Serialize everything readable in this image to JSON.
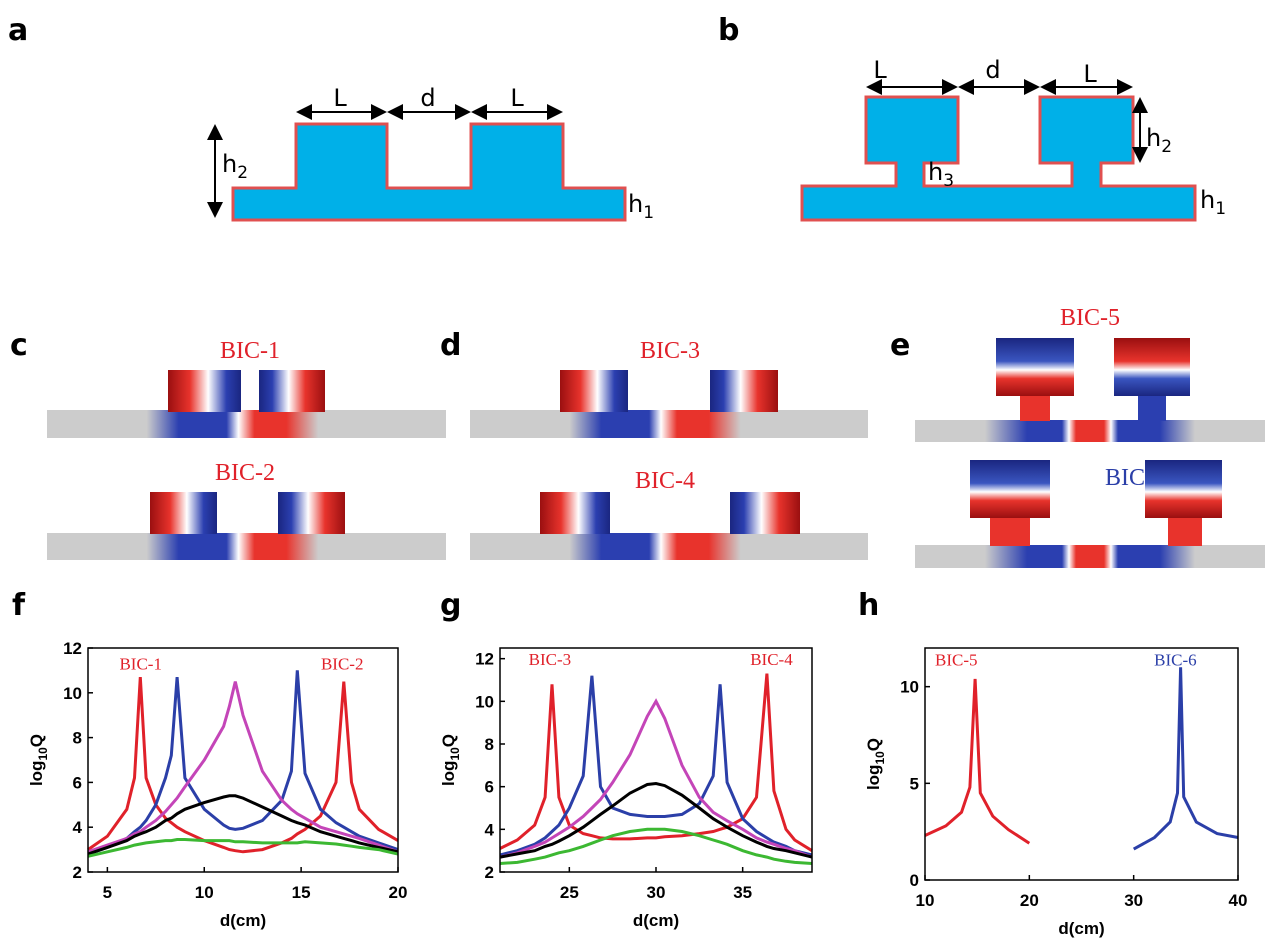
{
  "panels": {
    "a": {
      "label": "a",
      "L1": "L",
      "d": "d",
      "L2": "L",
      "h2": {
        "base": "h",
        "sub": "2"
      },
      "h1": {
        "base": "h",
        "sub": "1"
      }
    },
    "b": {
      "label": "b",
      "L1": "L",
      "d": "d",
      "L2": "L",
      "h2": {
        "base": "h",
        "sub": "2"
      },
      "h3": {
        "base": "h",
        "sub": "3"
      },
      "h1": {
        "base": "h",
        "sub": "1"
      }
    },
    "c": {
      "label": "c",
      "top": "BIC-1",
      "bottom": "BIC-2"
    },
    "d": {
      "label": "d",
      "top": "BIC-3",
      "bottom": "BIC-4"
    },
    "e": {
      "label": "e",
      "top": "BIC-5",
      "bottom": "BIC-6"
    }
  },
  "chart_data": [
    {
      "type": "line",
      "panel_label": "f",
      "x_label": "d(cm)",
      "y_label": {
        "text": "log",
        "sub": "10",
        "rest": "Q"
      },
      "xlim": [
        4,
        20
      ],
      "ylim": [
        2,
        12
      ],
      "xticks": [
        5,
        10,
        15,
        20
      ],
      "yticks": [
        2,
        4,
        6,
        8,
        10,
        12
      ],
      "annotations": [
        {
          "text": "BIC-1",
          "color": "#e0212a"
        },
        {
          "text": "BIC-2",
          "color": "#e0212a"
        }
      ],
      "x": [
        4,
        5,
        6,
        6.4,
        6.7,
        7,
        7.5,
        8,
        8.3,
        8.6,
        9,
        10,
        11,
        11.3,
        11.6,
        12,
        13,
        14,
        14.5,
        14.8,
        15.2,
        16,
        16.8,
        17.2,
        17.6,
        18,
        19,
        20
      ],
      "series": [
        {
          "color": "#e0212a",
          "values": [
            3.0,
            3.6,
            4.8,
            6.2,
            10.7,
            6.2,
            5.0,
            4.4,
            4.2,
            4.0,
            3.8,
            3.4,
            3.1,
            3.0,
            2.95,
            2.9,
            3.0,
            3.3,
            3.5,
            3.7,
            3.9,
            4.5,
            6.0,
            10.5,
            6.0,
            4.8,
            3.9,
            3.4
          ]
        },
        {
          "color": "#2b3fa8",
          "values": [
            2.8,
            3.1,
            3.5,
            3.8,
            4.0,
            4.3,
            5.0,
            6.2,
            7.2,
            10.7,
            6.2,
            4.8,
            4.1,
            3.95,
            3.9,
            3.95,
            4.3,
            5.2,
            6.5,
            11.0,
            6.4,
            4.8,
            4.2,
            4.0,
            3.8,
            3.6,
            3.3,
            3.0
          ]
        },
        {
          "color": "#c445b8",
          "values": [
            2.9,
            3.2,
            3.5,
            3.7,
            3.8,
            4.0,
            4.3,
            4.7,
            5.0,
            5.3,
            5.8,
            7.0,
            8.5,
            9.4,
            10.5,
            9.0,
            6.5,
            5.2,
            4.8,
            4.6,
            4.4,
            4.0,
            3.8,
            3.7,
            3.6,
            3.5,
            3.2,
            2.9
          ]
        },
        {
          "color": "#000000",
          "values": [
            2.8,
            3.1,
            3.4,
            3.6,
            3.7,
            3.8,
            4.0,
            4.3,
            4.4,
            4.6,
            4.8,
            5.1,
            5.35,
            5.4,
            5.4,
            5.3,
            4.9,
            4.5,
            4.3,
            4.2,
            4.1,
            3.8,
            3.6,
            3.5,
            3.4,
            3.3,
            3.1,
            2.9
          ]
        },
        {
          "color": "#3cb832",
          "values": [
            2.7,
            2.9,
            3.1,
            3.2,
            3.25,
            3.3,
            3.35,
            3.4,
            3.4,
            3.45,
            3.45,
            3.4,
            3.4,
            3.4,
            3.35,
            3.35,
            3.3,
            3.3,
            3.3,
            3.3,
            3.35,
            3.3,
            3.25,
            3.2,
            3.15,
            3.1,
            3.0,
            2.8
          ]
        }
      ]
    },
    {
      "type": "line",
      "panel_label": "g",
      "x_label": "d(cm)",
      "y_label": {
        "text": "log",
        "sub": "10",
        "rest": "Q"
      },
      "xlim": [
        21,
        39
      ],
      "ylim": [
        2,
        12.5
      ],
      "xticks": [
        25,
        30,
        35
      ],
      "yticks": [
        2,
        4,
        6,
        8,
        10,
        12
      ],
      "annotations": [
        {
          "text": "BIC-3",
          "color": "#e0212a"
        },
        {
          "text": "BIC-4",
          "color": "#e0212a"
        }
      ],
      "x": [
        21,
        22,
        23,
        23.6,
        24,
        24.4,
        25,
        25.8,
        26.3,
        26.8,
        27.5,
        28.5,
        29.5,
        30,
        30.5,
        31.5,
        32.5,
        33.3,
        33.7,
        34.1,
        35,
        35.8,
        36.4,
        36.8,
        37.5,
        38,
        39
      ],
      "series": [
        {
          "color": "#e0212a",
          "values": [
            3.1,
            3.5,
            4.2,
            5.5,
            10.8,
            5.5,
            4.2,
            3.8,
            3.7,
            3.6,
            3.55,
            3.55,
            3.6,
            3.6,
            3.65,
            3.7,
            3.8,
            3.9,
            4.0,
            4.1,
            4.5,
            5.5,
            11.3,
            5.8,
            4.0,
            3.5,
            3.0
          ]
        },
        {
          "color": "#2b3fa8",
          "values": [
            2.8,
            3.0,
            3.3,
            3.6,
            3.9,
            4.2,
            5.0,
            6.5,
            11.2,
            6.0,
            5.0,
            4.7,
            4.6,
            4.6,
            4.6,
            4.7,
            5.2,
            6.5,
            10.8,
            6.2,
            4.5,
            3.9,
            3.6,
            3.4,
            3.2,
            3.0,
            2.8
          ]
        },
        {
          "color": "#c445b8",
          "values": [
            2.7,
            2.9,
            3.2,
            3.4,
            3.6,
            3.8,
            4.1,
            4.6,
            5.0,
            5.4,
            6.2,
            7.5,
            9.3,
            10.0,
            9.2,
            7.0,
            5.5,
            4.8,
            4.6,
            4.4,
            4.0,
            3.6,
            3.4,
            3.3,
            3.1,
            3.0,
            2.7
          ]
        },
        {
          "color": "#000000",
          "values": [
            2.7,
            2.85,
            3.0,
            3.2,
            3.3,
            3.45,
            3.7,
            4.1,
            4.4,
            4.7,
            5.1,
            5.7,
            6.1,
            6.15,
            6.05,
            5.6,
            5.0,
            4.5,
            4.3,
            4.1,
            3.7,
            3.4,
            3.2,
            3.1,
            3.0,
            2.9,
            2.7
          ]
        },
        {
          "color": "#3cb832",
          "values": [
            2.4,
            2.45,
            2.6,
            2.7,
            2.8,
            2.9,
            3.0,
            3.2,
            3.35,
            3.5,
            3.7,
            3.9,
            4.0,
            4.0,
            4.0,
            3.9,
            3.7,
            3.5,
            3.4,
            3.3,
            3.0,
            2.8,
            2.7,
            2.6,
            2.5,
            2.45,
            2.4
          ]
        }
      ]
    },
    {
      "type": "line",
      "panel_label": "h",
      "x_label": "d(cm)",
      "y_label": {
        "text": "log",
        "sub": "10",
        "rest": "Q"
      },
      "xlim": [
        10,
        40
      ],
      "ylim": [
        0,
        12
      ],
      "xticks": [
        10,
        20,
        30,
        40
      ],
      "yticks": [
        0,
        5,
        10
      ],
      "annotations": [
        {
          "text": "BIC-5",
          "color": "#e0212a"
        },
        {
          "text": "BIC-6",
          "color": "#2b3fa8"
        }
      ],
      "x": [
        10,
        12,
        13.5,
        14.3,
        14.8,
        15.3,
        16.5,
        18,
        20,
        30,
        32,
        33.5,
        34.2,
        34.5,
        34.8,
        36,
        38,
        40
      ],
      "series": [
        {
          "color": "#e0212a",
          "values": [
            2.3,
            2.8,
            3.5,
            4.8,
            10.4,
            4.5,
            3.3,
            2.6,
            1.9,
            null,
            null,
            null,
            null,
            null,
            null,
            null,
            null,
            null
          ]
        },
        {
          "color": "#2b3fa8",
          "values": [
            null,
            null,
            null,
            null,
            null,
            null,
            null,
            null,
            null,
            1.6,
            2.2,
            3.0,
            4.5,
            11.0,
            4.3,
            3.0,
            2.4,
            2.2
          ]
        }
      ]
    }
  ]
}
